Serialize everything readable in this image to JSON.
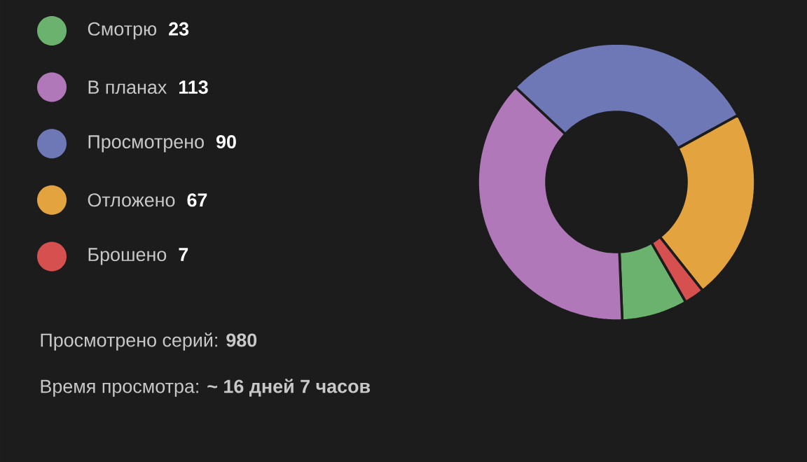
{
  "chart_data": {
    "type": "donut",
    "categories": [
      "Смотрю",
      "В планах",
      "Просмотрено",
      "Отложено",
      "Брошено"
    ],
    "values": [
      23,
      113,
      90,
      67,
      7
    ],
    "colors": [
      "#6cb26f",
      "#b077b9",
      "#6e78b6",
      "#e3a43f",
      "#d65050"
    ],
    "value_labels": [
      "23",
      "113",
      "90",
      "67",
      "7"
    ],
    "legend": "left",
    "annotations": [
      "Просмотрено серий:  **980**",
      "Время просмотра:  **~ 16 дней 7 часов**"
    ]
  }
}
